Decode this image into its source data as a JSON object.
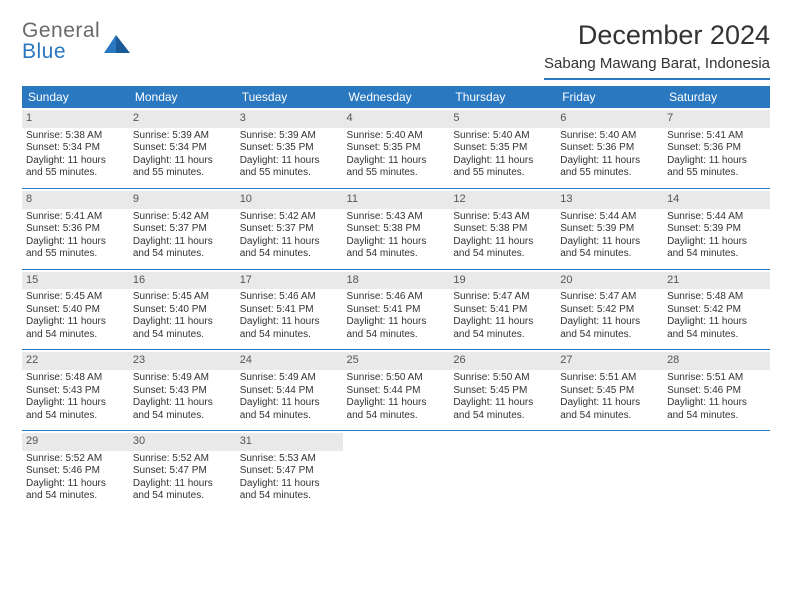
{
  "logo": {
    "line1": "General",
    "line2": "Blue"
  },
  "title": "December 2024",
  "location": "Sabang Mawang Barat, Indonesia",
  "header_bg": "#2a78c0",
  "header_text_color": "#ffffff",
  "daynum_bg": "#e9e9e9",
  "border_color": "#2a78c0",
  "weekdays": [
    "Sunday",
    "Monday",
    "Tuesday",
    "Wednesday",
    "Thursday",
    "Friday",
    "Saturday"
  ],
  "days": [
    {
      "n": 1,
      "sr": "5:38 AM",
      "ss": "5:34 PM",
      "dl": "11 hours and 55 minutes."
    },
    {
      "n": 2,
      "sr": "5:39 AM",
      "ss": "5:34 PM",
      "dl": "11 hours and 55 minutes."
    },
    {
      "n": 3,
      "sr": "5:39 AM",
      "ss": "5:35 PM",
      "dl": "11 hours and 55 minutes."
    },
    {
      "n": 4,
      "sr": "5:40 AM",
      "ss": "5:35 PM",
      "dl": "11 hours and 55 minutes."
    },
    {
      "n": 5,
      "sr": "5:40 AM",
      "ss": "5:35 PM",
      "dl": "11 hours and 55 minutes."
    },
    {
      "n": 6,
      "sr": "5:40 AM",
      "ss": "5:36 PM",
      "dl": "11 hours and 55 minutes."
    },
    {
      "n": 7,
      "sr": "5:41 AM",
      "ss": "5:36 PM",
      "dl": "11 hours and 55 minutes."
    },
    {
      "n": 8,
      "sr": "5:41 AM",
      "ss": "5:36 PM",
      "dl": "11 hours and 55 minutes."
    },
    {
      "n": 9,
      "sr": "5:42 AM",
      "ss": "5:37 PM",
      "dl": "11 hours and 54 minutes."
    },
    {
      "n": 10,
      "sr": "5:42 AM",
      "ss": "5:37 PM",
      "dl": "11 hours and 54 minutes."
    },
    {
      "n": 11,
      "sr": "5:43 AM",
      "ss": "5:38 PM",
      "dl": "11 hours and 54 minutes."
    },
    {
      "n": 12,
      "sr": "5:43 AM",
      "ss": "5:38 PM",
      "dl": "11 hours and 54 minutes."
    },
    {
      "n": 13,
      "sr": "5:44 AM",
      "ss": "5:39 PM",
      "dl": "11 hours and 54 minutes."
    },
    {
      "n": 14,
      "sr": "5:44 AM",
      "ss": "5:39 PM",
      "dl": "11 hours and 54 minutes."
    },
    {
      "n": 15,
      "sr": "5:45 AM",
      "ss": "5:40 PM",
      "dl": "11 hours and 54 minutes."
    },
    {
      "n": 16,
      "sr": "5:45 AM",
      "ss": "5:40 PM",
      "dl": "11 hours and 54 minutes."
    },
    {
      "n": 17,
      "sr": "5:46 AM",
      "ss": "5:41 PM",
      "dl": "11 hours and 54 minutes."
    },
    {
      "n": 18,
      "sr": "5:46 AM",
      "ss": "5:41 PM",
      "dl": "11 hours and 54 minutes."
    },
    {
      "n": 19,
      "sr": "5:47 AM",
      "ss": "5:41 PM",
      "dl": "11 hours and 54 minutes."
    },
    {
      "n": 20,
      "sr": "5:47 AM",
      "ss": "5:42 PM",
      "dl": "11 hours and 54 minutes."
    },
    {
      "n": 21,
      "sr": "5:48 AM",
      "ss": "5:42 PM",
      "dl": "11 hours and 54 minutes."
    },
    {
      "n": 22,
      "sr": "5:48 AM",
      "ss": "5:43 PM",
      "dl": "11 hours and 54 minutes."
    },
    {
      "n": 23,
      "sr": "5:49 AM",
      "ss": "5:43 PM",
      "dl": "11 hours and 54 minutes."
    },
    {
      "n": 24,
      "sr": "5:49 AM",
      "ss": "5:44 PM",
      "dl": "11 hours and 54 minutes."
    },
    {
      "n": 25,
      "sr": "5:50 AM",
      "ss": "5:44 PM",
      "dl": "11 hours and 54 minutes."
    },
    {
      "n": 26,
      "sr": "5:50 AM",
      "ss": "5:45 PM",
      "dl": "11 hours and 54 minutes."
    },
    {
      "n": 27,
      "sr": "5:51 AM",
      "ss": "5:45 PM",
      "dl": "11 hours and 54 minutes."
    },
    {
      "n": 28,
      "sr": "5:51 AM",
      "ss": "5:46 PM",
      "dl": "11 hours and 54 minutes."
    },
    {
      "n": 29,
      "sr": "5:52 AM",
      "ss": "5:46 PM",
      "dl": "11 hours and 54 minutes."
    },
    {
      "n": 30,
      "sr": "5:52 AM",
      "ss": "5:47 PM",
      "dl": "11 hours and 54 minutes."
    },
    {
      "n": 31,
      "sr": "5:53 AM",
      "ss": "5:47 PM",
      "dl": "11 hours and 54 minutes."
    }
  ],
  "labels": {
    "sunrise": "Sunrise:",
    "sunset": "Sunset:",
    "daylight": "Daylight:"
  }
}
